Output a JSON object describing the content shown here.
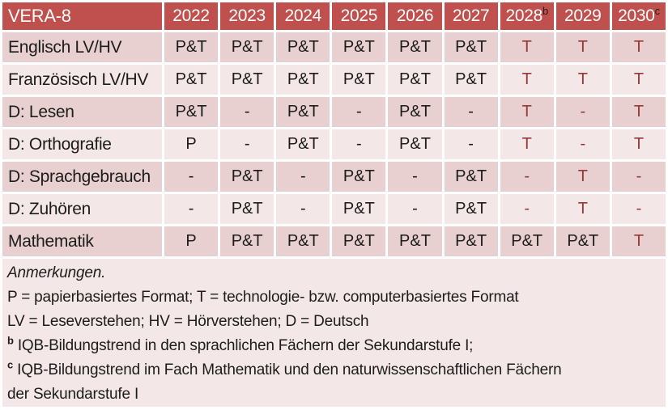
{
  "palette": {
    "header_bg": "#C0504D",
    "header_text": "#FFFFFF",
    "band_dark": "#E7D0CF",
    "band_light": "#F3E8E7",
    "accent_text": "#953735",
    "body_text": "#1C1C1C"
  },
  "table": {
    "title": "VERA-8",
    "columns": [
      {
        "label": "2022",
        "sup": ""
      },
      {
        "label": "2023",
        "sup": ""
      },
      {
        "label": "2024",
        "sup": ""
      },
      {
        "label": "2025",
        "sup": ""
      },
      {
        "label": "2026",
        "sup": ""
      },
      {
        "label": "2027",
        "sup": ""
      },
      {
        "label": "2028",
        "sup": "b"
      },
      {
        "label": "2029",
        "sup": ""
      },
      {
        "label": "2030",
        "sup": "c"
      }
    ],
    "rows": [
      {
        "label": "Englisch LV/HV",
        "cells": [
          {
            "t": "P&T",
            "hl": false
          },
          {
            "t": "P&T",
            "hl": false
          },
          {
            "t": "P&T",
            "hl": false
          },
          {
            "t": "P&T",
            "hl": false
          },
          {
            "t": "P&T",
            "hl": false
          },
          {
            "t": "P&T",
            "hl": false
          },
          {
            "t": "T",
            "hl": true
          },
          {
            "t": "T",
            "hl": true
          },
          {
            "t": "T",
            "hl": true
          }
        ]
      },
      {
        "label": "Französisch LV/HV",
        "cells": [
          {
            "t": "P&T",
            "hl": false
          },
          {
            "t": "P&T",
            "hl": false
          },
          {
            "t": "P&T",
            "hl": false
          },
          {
            "t": "P&T",
            "hl": false
          },
          {
            "t": "P&T",
            "hl": false
          },
          {
            "t": "P&T",
            "hl": false
          },
          {
            "t": "T",
            "hl": true
          },
          {
            "t": "T",
            "hl": true
          },
          {
            "t": "T",
            "hl": true
          }
        ]
      },
      {
        "label": "D: Lesen",
        "cells": [
          {
            "t": "P&T",
            "hl": false
          },
          {
            "t": "-",
            "hl": false
          },
          {
            "t": "P&T",
            "hl": false
          },
          {
            "t": "-",
            "hl": false
          },
          {
            "t": "P&T",
            "hl": false
          },
          {
            "t": "-",
            "hl": false
          },
          {
            "t": "T",
            "hl": true
          },
          {
            "t": "-",
            "hl": true
          },
          {
            "t": "T",
            "hl": true
          }
        ]
      },
      {
        "label": "D: Orthografie",
        "cells": [
          {
            "t": "P",
            "hl": false
          },
          {
            "t": "-",
            "hl": false
          },
          {
            "t": "P&T",
            "hl": false
          },
          {
            "t": "-",
            "hl": false
          },
          {
            "t": "P&T",
            "hl": false
          },
          {
            "t": "-",
            "hl": false
          },
          {
            "t": "T",
            "hl": true
          },
          {
            "t": "-",
            "hl": true
          },
          {
            "t": "T",
            "hl": true
          }
        ]
      },
      {
        "label": "D: Sprachgebrauch",
        "cells": [
          {
            "t": "-",
            "hl": false
          },
          {
            "t": "P&T",
            "hl": false
          },
          {
            "t": "-",
            "hl": false
          },
          {
            "t": "P&T",
            "hl": false
          },
          {
            "t": "-",
            "hl": false
          },
          {
            "t": "P&T",
            "hl": false
          },
          {
            "t": "-",
            "hl": true
          },
          {
            "t": "T",
            "hl": true
          },
          {
            "t": "-",
            "hl": true
          }
        ]
      },
      {
        "label": "D: Zuhören",
        "cells": [
          {
            "t": "-",
            "hl": false
          },
          {
            "t": "P&T",
            "hl": false
          },
          {
            "t": "-",
            "hl": false
          },
          {
            "t": "P&T",
            "hl": false
          },
          {
            "t": "-",
            "hl": false
          },
          {
            "t": "P&T",
            "hl": false
          },
          {
            "t": "-",
            "hl": true
          },
          {
            "t": "T",
            "hl": true
          },
          {
            "t": "-",
            "hl": true
          }
        ]
      },
      {
        "label": "Mathematik",
        "cells": [
          {
            "t": "P",
            "hl": false
          },
          {
            "t": "P&T",
            "hl": false
          },
          {
            "t": "P&T",
            "hl": false
          },
          {
            "t": "P&T",
            "hl": false
          },
          {
            "t": "P&T",
            "hl": false
          },
          {
            "t": "P&T",
            "hl": false
          },
          {
            "t": "P&T",
            "hl": false
          },
          {
            "t": "P&T",
            "hl": false
          },
          {
            "t": "T",
            "hl": true
          }
        ]
      }
    ]
  },
  "notes": {
    "heading": "Anmerkungen.",
    "line_formats": "P = papierbasiertes Format; T = technologie- bzw. computerbasiertes Format",
    "line_abbrev": "LV = Leseverstehen; HV = Hörverstehen; D = Deutsch",
    "note_b": {
      "sup": "b",
      "text": "IQB-Bildungstrend in den sprachlichen Fächern der Sekundarstufe I;"
    },
    "note_c": {
      "sup": "c",
      "text": "IQB-Bildungstrend im Fach Mathematik und den naturwissenschaftlichen Fächern der Sekundarstufe I"
    }
  }
}
